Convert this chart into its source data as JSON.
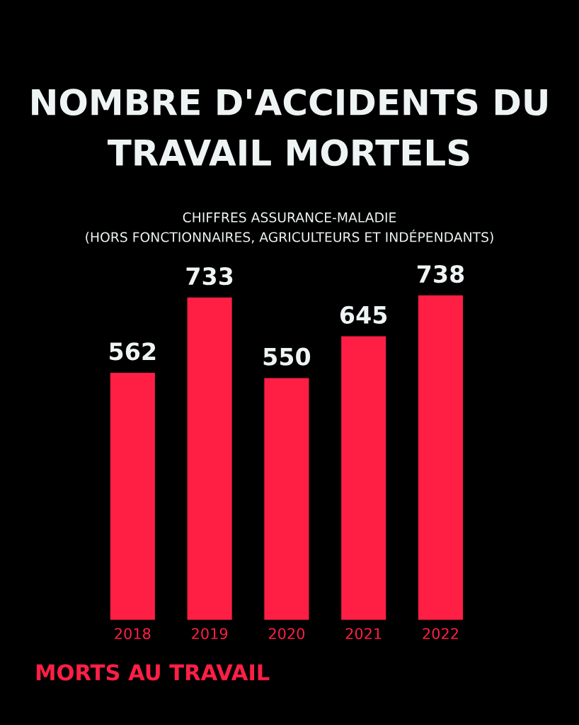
{
  "chart_data": {
    "type": "bar",
    "title": "NOMBRE D'ACCIDENTS DU TRAVAIL MORTELS",
    "subtitle": "CHIFFRES ASSURANCE-MALADIE\n(HORS FONCTIONNAIRES, AGRICULTEURS ET INDÉPENDANTS)",
    "categories": [
      "2018",
      "2019",
      "2020",
      "2021",
      "2022"
    ],
    "values": [
      562,
      733,
      550,
      645,
      738
    ],
    "color": "#ff1f45",
    "data_labels": true,
    "grid": false,
    "annotations": [
      "MORTS AU TRAVAIL"
    ]
  }
}
